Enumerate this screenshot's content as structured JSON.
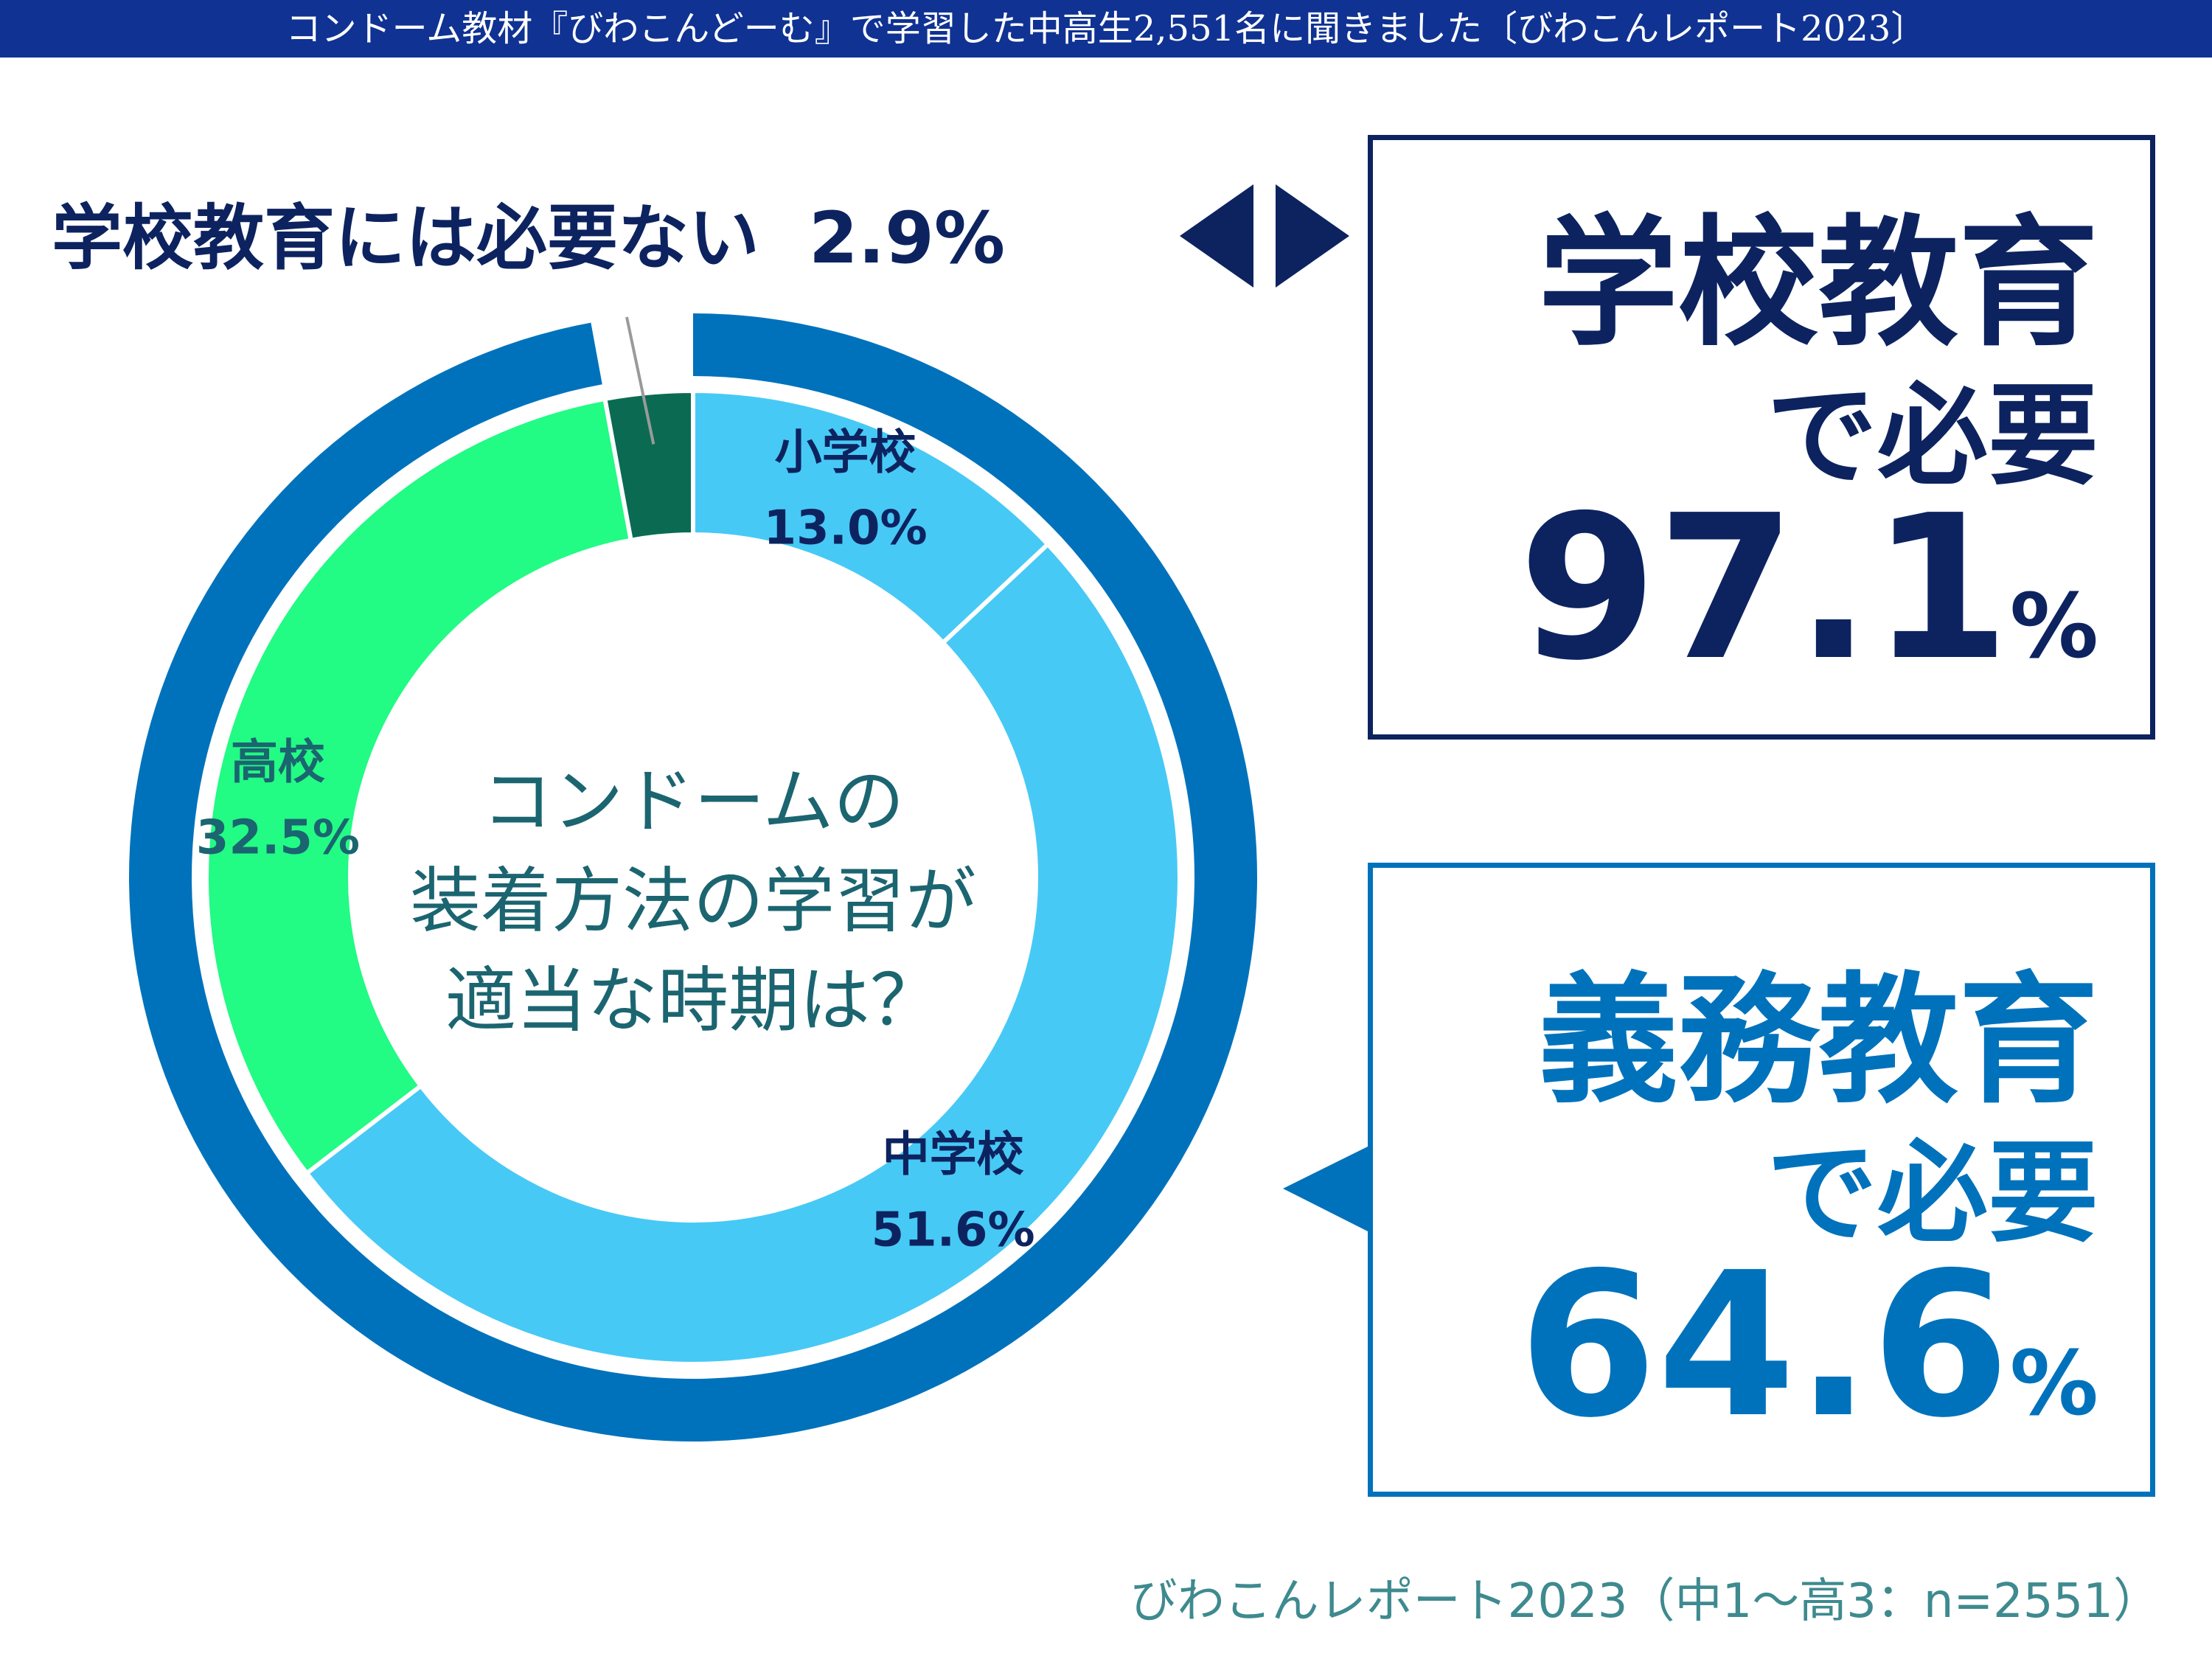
{
  "header": {
    "title": "コンドーム教材『びわこんどーむ』で学習した中高生2,551名に聞きました〔びわこんレポート2023〕"
  },
  "chart_data": {
    "type": "pie",
    "title": "コンドームの装着方法の学習が適当な時期は？",
    "center_lines": [
      "コンドームの",
      "装着方法の学習が",
      "適当な時期は？"
    ],
    "slices": [
      {
        "label": "小学校",
        "value": 13.0,
        "value_label": "13.0%",
        "color": "#47c9f5"
      },
      {
        "label": "中学校",
        "value": 51.6,
        "value_label": "51.6%",
        "color": "#47c9f5"
      },
      {
        "label": "高校",
        "value": 32.5,
        "value_label": "32.5%",
        "color": "#22fb84"
      },
      {
        "label": "学校教育には必要ない",
        "value": 2.9,
        "value_label": "2.9%",
        "color": "#0b6b52"
      }
    ],
    "outer_arcs": [
      {
        "name": "学校教育で必要",
        "value": 97.1,
        "color": "#0072bc"
      },
      {
        "name": "義務教育で必要",
        "value": 64.6,
        "color": "#0072bc"
      }
    ]
  },
  "callout_not_needed": {
    "label": "学校教育には必要ない",
    "value": "2.9%"
  },
  "summary_school": {
    "line1": "学校教育",
    "line2": "で必要",
    "number": "97.1",
    "unit": "%"
  },
  "summary_compulsory": {
    "line1": "義務教育",
    "line2": "で必要",
    "number": "64.6",
    "unit": "%"
  },
  "source": "びわこんレポート2023（中1〜高3：n=2551）",
  "colors": {
    "navy": "#0d2360",
    "blue": "#0072bc",
    "header_bg": "#0f3293",
    "label_teal": "#1b6570",
    "divider": "#1a3b8a"
  }
}
